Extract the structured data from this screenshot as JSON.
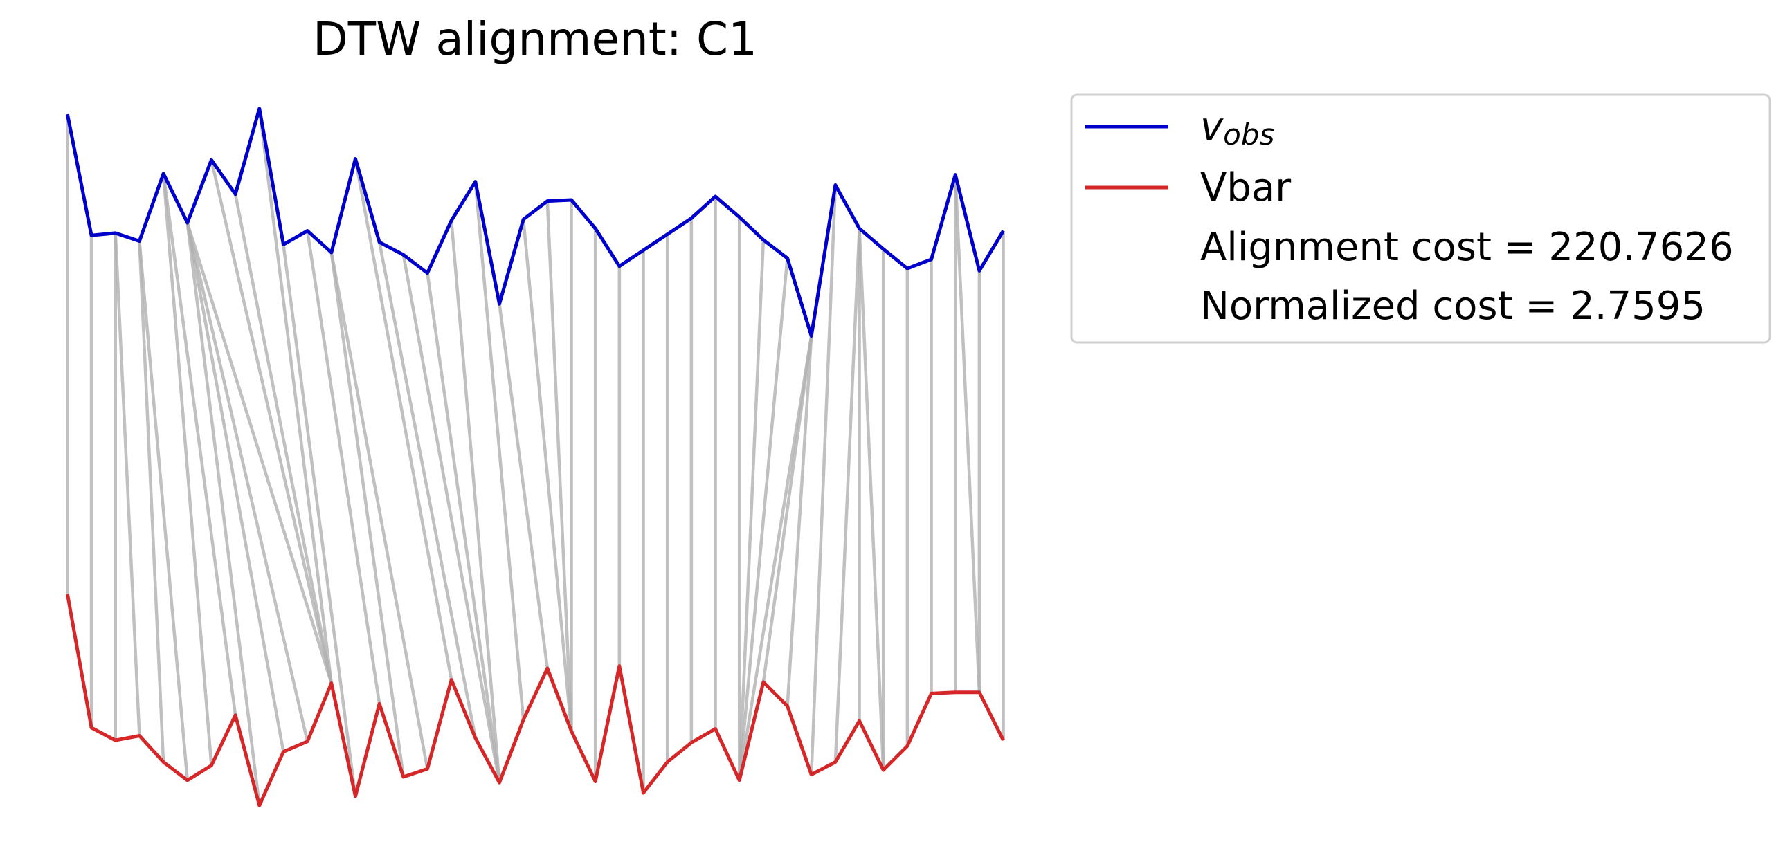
{
  "chart_data": {
    "type": "dtw",
    "title": "DTW alignment: C1",
    "x": [
      0,
      1,
      2,
      3,
      4,
      5,
      6,
      7,
      8,
      9,
      10,
      11,
      12,
      13,
      14,
      15,
      16,
      17,
      18,
      19,
      20,
      21,
      22,
      23,
      24,
      25,
      26,
      27,
      28,
      29,
      30,
      31,
      32,
      33,
      34,
      35,
      36,
      37,
      38,
      39
    ],
    "xlim": [
      0,
      39
    ],
    "ylim": [
      40,
      760
    ],
    "series": [
      {
        "name": "v_obs",
        "color": "#0000cc",
        "values": [
          660,
          554,
          556,
          549,
          608,
          565,
          620,
          590,
          665,
          546,
          558,
          539,
          621,
          548,
          537,
          521,
          567,
          601,
          494,
          568,
          584,
          585,
          560,
          527,
          541,
          555,
          569,
          588,
          570,
          550,
          534,
          466,
          598,
          560,
          542,
          525,
          533,
          607,
          523,
          558
        ]
      },
      {
        "name": "Vbar",
        "color": "#d62728",
        "values": [
          240,
          123,
          112,
          116,
          93,
          77,
          90,
          134,
          55,
          102,
          111,
          162,
          63,
          144,
          80,
          87,
          165,
          114,
          75,
          130,
          175,
          120,
          76,
          177,
          66,
          93,
          110,
          122,
          77,
          163,
          142,
          82,
          93,
          129,
          86,
          107,
          153,
          154,
          154,
          112
        ]
      }
    ],
    "path_color": "#b0b0b0",
    "path": [
      [
        0,
        0
      ],
      [
        1,
        1
      ],
      [
        2,
        2
      ],
      [
        2,
        3
      ],
      [
        3,
        4
      ],
      [
        3,
        5
      ],
      [
        4,
        6
      ],
      [
        4,
        7
      ],
      [
        5,
        8
      ],
      [
        5,
        9
      ],
      [
        5,
        10
      ],
      [
        5,
        11
      ],
      [
        6,
        11
      ],
      [
        7,
        11
      ],
      [
        8,
        11
      ],
      [
        9,
        12
      ],
      [
        10,
        13
      ],
      [
        11,
        14
      ],
      [
        11,
        15
      ],
      [
        12,
        16
      ],
      [
        13,
        17
      ],
      [
        14,
        18
      ],
      [
        15,
        18
      ],
      [
        16,
        18
      ],
      [
        17,
        19
      ],
      [
        18,
        20
      ],
      [
        19,
        21
      ],
      [
        20,
        21
      ],
      [
        21,
        21
      ],
      [
        22,
        22
      ],
      [
        23,
        23
      ],
      [
        24,
        24
      ],
      [
        25,
        25
      ],
      [
        26,
        26
      ],
      [
        27,
        27
      ],
      [
        28,
        28
      ],
      [
        29,
        28
      ],
      [
        30,
        28
      ],
      [
        31,
        28
      ],
      [
        31,
        29
      ],
      [
        31,
        30
      ],
      [
        32,
        31
      ],
      [
        33,
        32
      ],
      [
        33,
        33
      ],
      [
        33,
        34
      ],
      [
        34,
        34
      ],
      [
        35,
        35
      ],
      [
        36,
        36
      ],
      [
        37,
        37
      ],
      [
        37,
        38
      ],
      [
        38,
        38
      ],
      [
        39,
        39
      ]
    ],
    "legend_notes": [
      "Alignment cost = 220.7626",
      "Normalized cost = 2.7595"
    ],
    "legend": "upper right"
  }
}
